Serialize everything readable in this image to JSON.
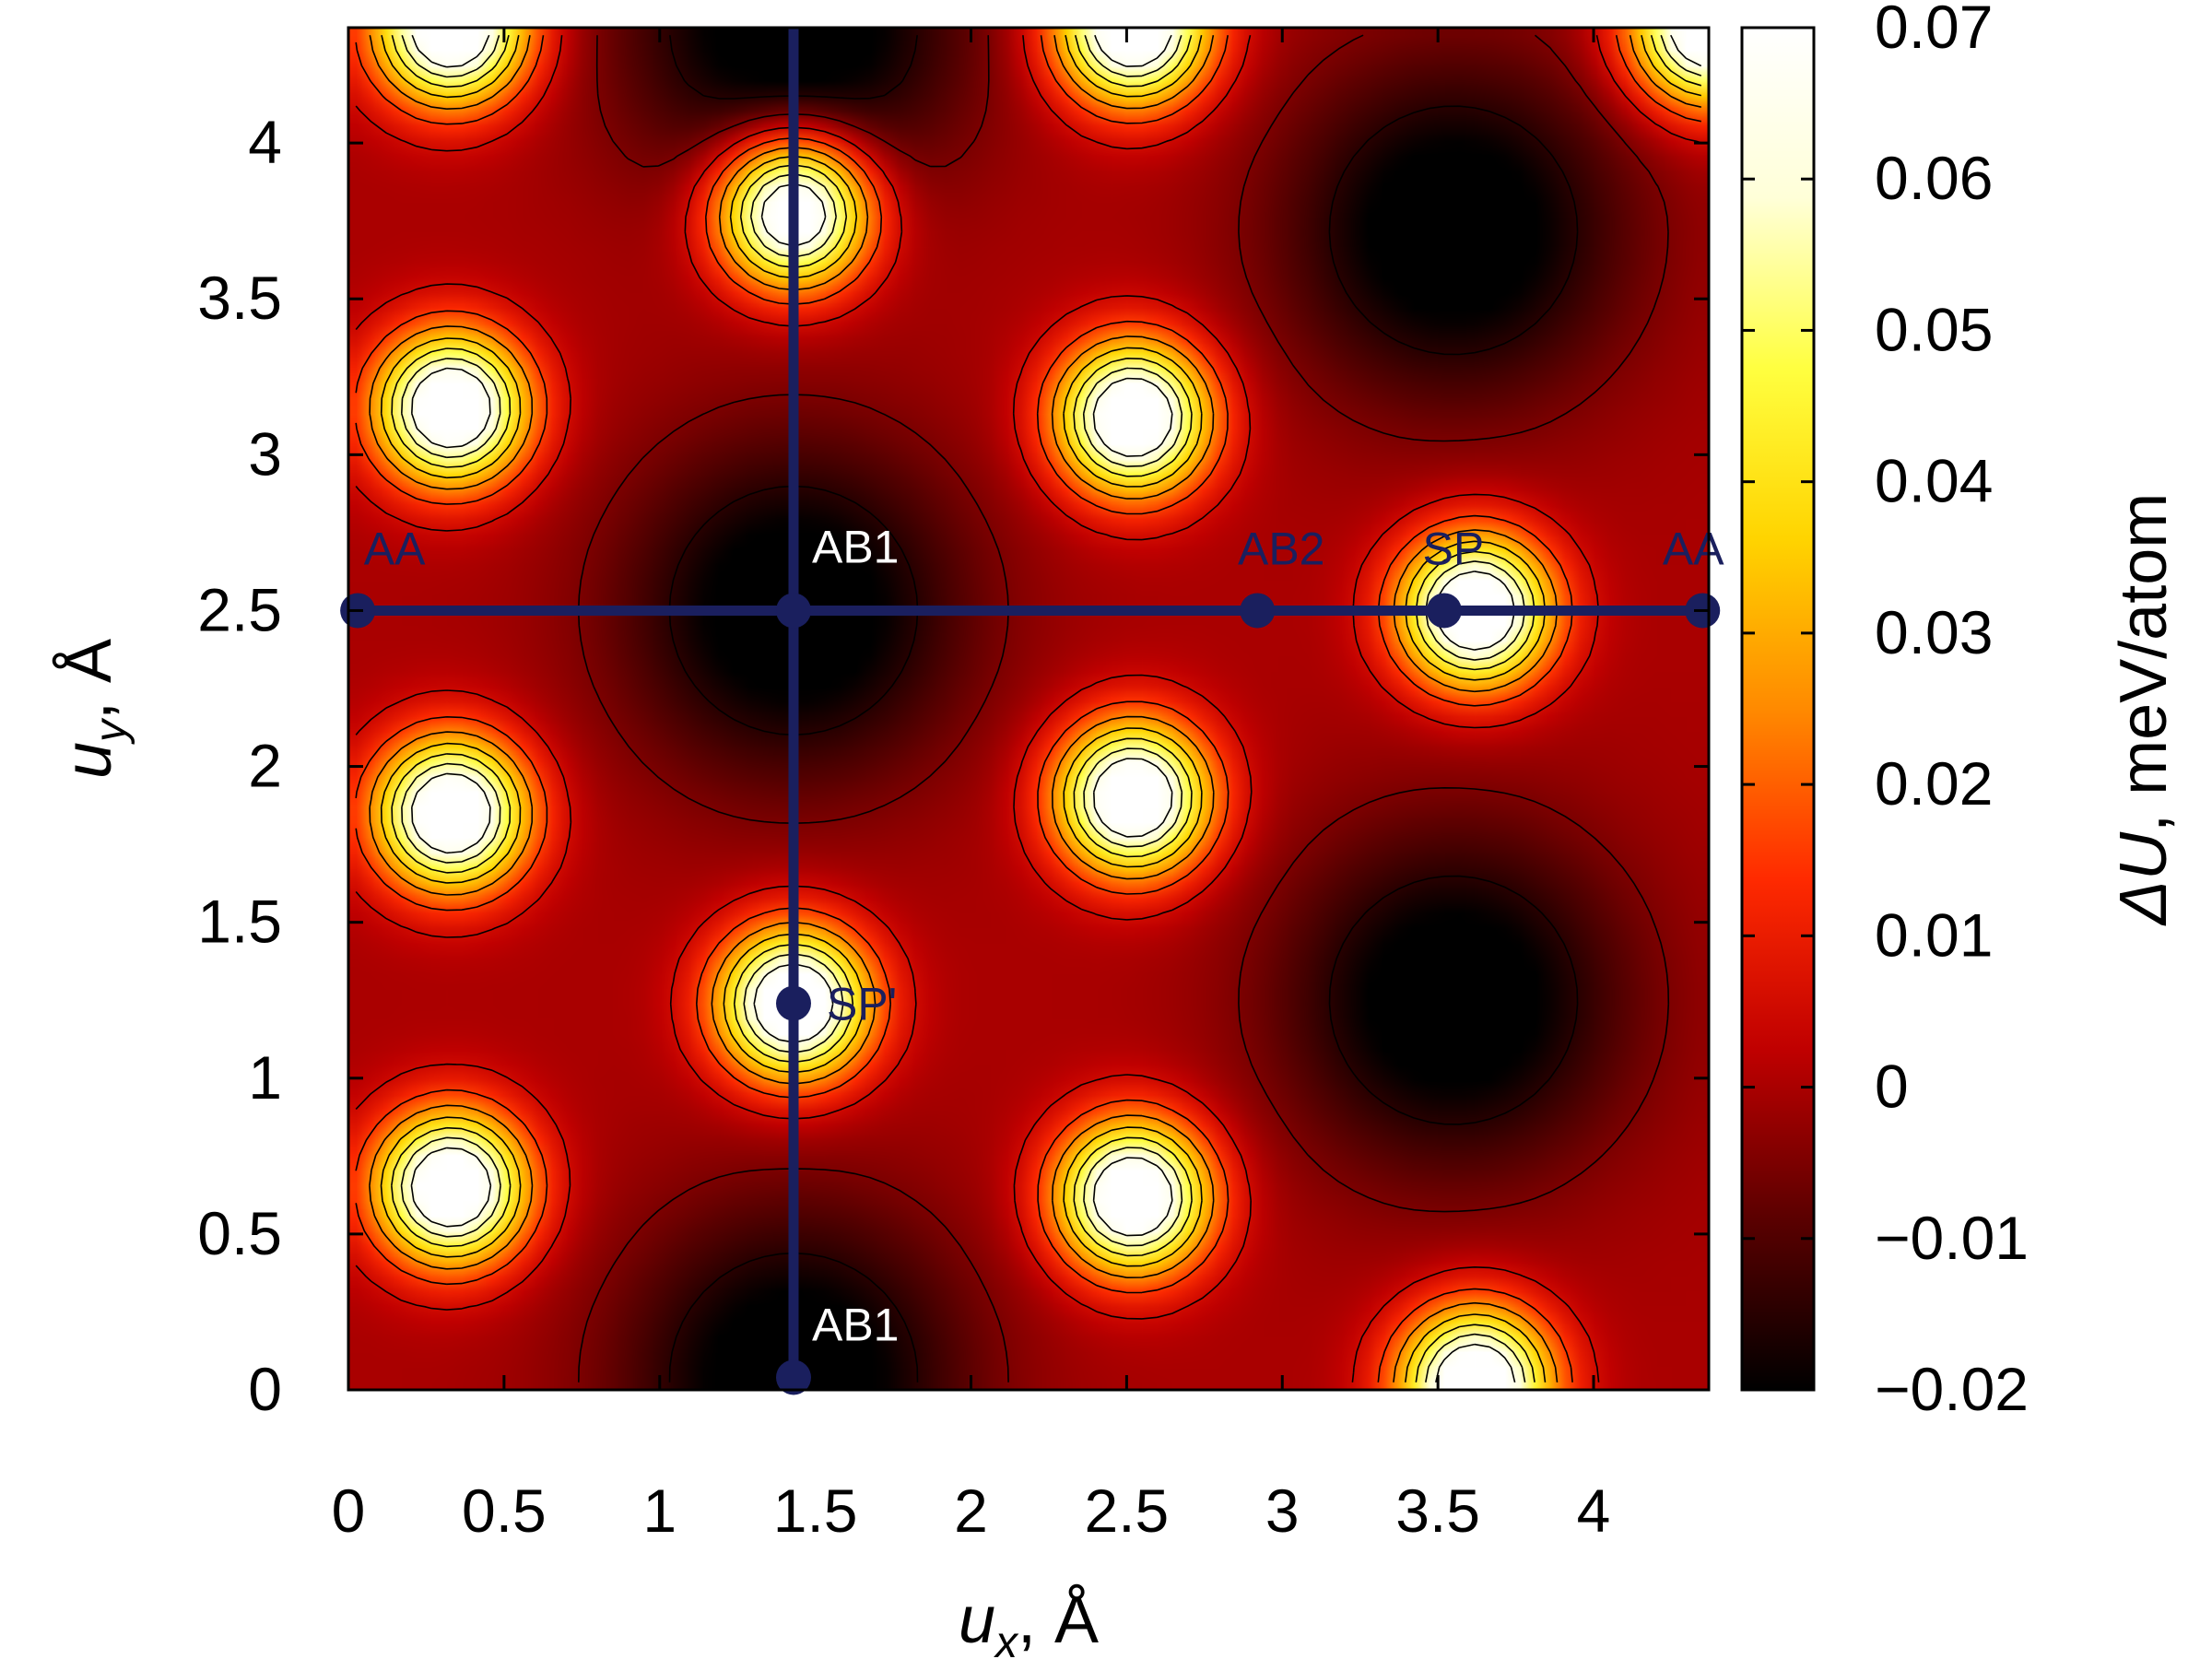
{
  "chart_data": {
    "type": "heatmap",
    "title": "",
    "xlabel": {
      "symbol": "u",
      "sub": "x",
      "unit": ", Å"
    },
    "ylabel": {
      "symbol": "u",
      "sub": "y",
      "unit": ", Å"
    },
    "colorbar_label": {
      "symbol": "ΔU",
      "unit": ", meV/atom"
    },
    "xlim": [
      0,
      4.37
    ],
    "ylim": [
      0,
      4.37
    ],
    "clim": [
      -0.02,
      0.07
    ],
    "x_ticks": [
      "0",
      "0.5",
      "1",
      "1.5",
      "2",
      "2.5",
      "3",
      "3.5",
      "4"
    ],
    "y_ticks": [
      "0",
      "0.5",
      "1",
      "1.5",
      "2",
      "2.5",
      "3",
      "3.5",
      "4"
    ],
    "colorbar_ticks": [
      "−0.02",
      "−0.01",
      "0",
      "0.01",
      "0.02",
      "0.03",
      "0.04",
      "0.05",
      "0.06",
      "0.07"
    ],
    "colormap": [
      "#000000",
      "#5a0000",
      "#c00000",
      "#ff2a00",
      "#ff8a00",
      "#ffd400",
      "#ffff40",
      "#ffffd8",
      "#ffffff"
    ],
    "contours": true,
    "path_color": "#1a1f5e",
    "paths": [
      {
        "from": [
          0,
          2.5
        ],
        "to": [
          4.37,
          2.5
        ]
      },
      {
        "from": [
          1.43,
          0.04
        ],
        "to": [
          1.43,
          4.37
        ]
      }
    ],
    "points": [
      {
        "label": "AA",
        "x": 0.03,
        "y": 2.5,
        "label_color": "#1a1f5e"
      },
      {
        "label": "AB1",
        "x": 1.43,
        "y": 2.5,
        "label_color": "#ffffff"
      },
      {
        "label": "AB2",
        "x": 2.92,
        "y": 2.5,
        "label_color": "#1a1f5e"
      },
      {
        "label": "SP",
        "x": 3.52,
        "y": 2.5,
        "label_color": "#1a1f5e"
      },
      {
        "label": "AA",
        "x": 4.35,
        "y": 2.5,
        "label_color": "#1a1f5e"
      },
      {
        "label": "SP'",
        "x": 1.43,
        "y": 1.24,
        "label_color": "#1a1f5e"
      },
      {
        "label": "AB1",
        "x": 1.43,
        "y": 0.04,
        "label_color": "#ffffff"
      }
    ],
    "features": {
      "maxima": [
        [
          0.33,
          4.37
        ],
        [
          0.33,
          3.15
        ],
        [
          0.33,
          1.85
        ],
        [
          0.33,
          0.65
        ],
        [
          1.43,
          3.78
        ],
        [
          1.43,
          1.24
        ],
        [
          2.52,
          4.37
        ],
        [
          2.52,
          3.12
        ],
        [
          2.52,
          1.9
        ],
        [
          2.52,
          0.62
        ],
        [
          3.62,
          2.5
        ],
        [
          3.62,
          0.02
        ],
        [
          4.37,
          4.37
        ]
      ],
      "minima": [
        [
          1.43,
          2.5
        ],
        [
          1.43,
          0.04
        ],
        [
          3.55,
          3.72
        ],
        [
          3.55,
          1.25
        ],
        [
          1.43,
          4.37
        ]
      ]
    }
  }
}
